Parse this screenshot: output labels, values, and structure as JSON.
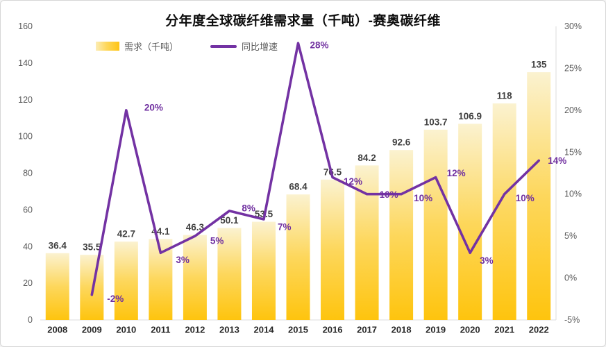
{
  "title": "分年度全球碳纤维需求量（千吨）-赛奥碳纤维",
  "legend": {
    "bar_label": "需求（千吨）",
    "line_label": "同比增速"
  },
  "colors": {
    "bar_gradient_top": "#fbf2d0",
    "bar_gradient_mid": "#fdd75c",
    "bar_gradient_bottom": "#fec40e",
    "line": "#7332a3",
    "pct_label": "#7030a0",
    "bar_value_label": "#3f3f3f",
    "axis_tick_text": "#595959",
    "year_label": "#262626",
    "plot_border": "#dcdcdc"
  },
  "chart_data": {
    "type": "bar",
    "subtype": "bar+line-combo",
    "title": "分年度全球碳纤维需求量（千吨）-赛奥碳纤维",
    "categories": [
      "2008",
      "2009",
      "2010",
      "2011",
      "2012",
      "2013",
      "2014",
      "2015",
      "2016",
      "2017",
      "2018",
      "2019",
      "2020",
      "2021",
      "2022"
    ],
    "series": [
      {
        "name": "需求（千吨）",
        "type": "bar",
        "axis": "left",
        "values": [
          36.4,
          35.5,
          42.7,
          44.1,
          46.3,
          50.1,
          53.5,
          68.4,
          76.5,
          84.2,
          92.6,
          103.7,
          106.9,
          118,
          135
        ],
        "labels": [
          "36.4",
          "35.5",
          "42.7",
          "44.1",
          "46.3",
          "50.1",
          "53.5",
          "68.4",
          "76.5",
          "84.2",
          "92.6",
          "103.7",
          "106.9",
          "118",
          "135"
        ]
      },
      {
        "name": "同比增速",
        "type": "line",
        "axis": "right",
        "values": [
          null,
          -2,
          20,
          3,
          5,
          8,
          7,
          28,
          12,
          10,
          10,
          12,
          3,
          10,
          14
        ],
        "labels": [
          null,
          "-2%",
          "20%",
          "3%",
          "5%",
          "8%",
          "7%",
          "28%",
          "12%",
          "10%",
          "10%",
          "12%",
          "3%",
          "10%",
          "14%"
        ]
      }
    ],
    "left_axis": {
      "min": 0,
      "max": 160,
      "step": 20,
      "ticks": [
        "0",
        "20",
        "40",
        "60",
        "80",
        "100",
        "120",
        "140",
        "160"
      ]
    },
    "right_axis": {
      "min": -5,
      "max": 30,
      "step": 5,
      "ticks": [
        "-5%",
        "0%",
        "5%",
        "10%",
        "15%",
        "20%",
        "25%",
        "30%"
      ]
    },
    "grid": false,
    "legend_position": "top-left",
    "pct_label_offsets": [
      null,
      [
        22,
        6
      ],
      [
        26,
        -4
      ],
      [
        22,
        10
      ],
      [
        22,
        7
      ],
      [
        18,
        -4
      ],
      [
        20,
        11
      ],
      [
        17,
        3
      ],
      [
        16,
        6
      ],
      [
        18,
        1
      ],
      [
        18,
        6
      ],
      [
        16,
        -6
      ],
      [
        14,
        11
      ],
      [
        16,
        6
      ],
      [
        13,
        0
      ]
    ]
  }
}
